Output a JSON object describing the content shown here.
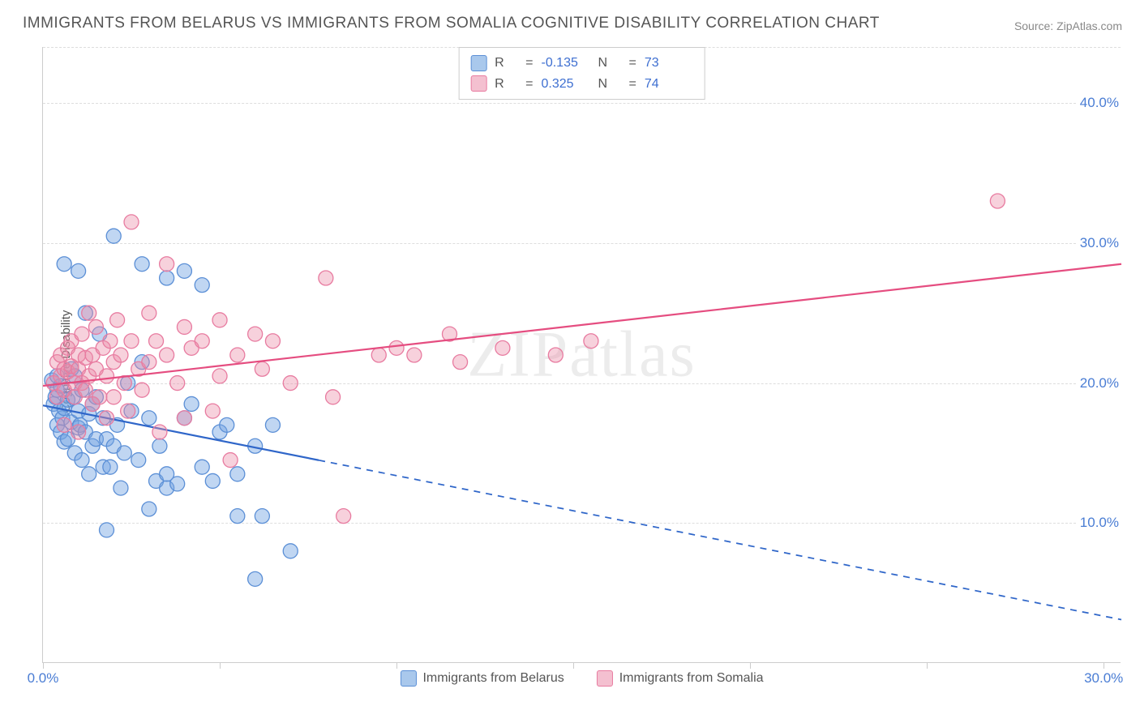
{
  "title": "IMMIGRANTS FROM BELARUS VS IMMIGRANTS FROM SOMALIA COGNITIVE DISABILITY CORRELATION CHART",
  "source": "Source: ZipAtlas.com",
  "watermark": "ZIPatlas",
  "y_axis_title": "Cognitive Disability",
  "chart": {
    "type": "scatter",
    "xlim": [
      0,
      30.5
    ],
    "ylim": [
      0,
      44
    ],
    "xticks": [
      0,
      5,
      10,
      15,
      20,
      25,
      30
    ],
    "xtick_labels": {
      "0": "0.0%",
      "30": "30.0%"
    },
    "yticks": [
      10,
      20,
      30,
      40
    ],
    "ytick_labels": {
      "10": "10.0%",
      "20": "20.0%",
      "30": "30.0%",
      "40": "40.0%"
    },
    "background_color": "#ffffff",
    "grid_color": "#dddddd",
    "axis_label_color": "#4a7dd4",
    "series": [
      {
        "name": "Immigrants from Belarus",
        "color_fill": "rgba(116,165,226,0.45)",
        "color_stroke": "#5b8fd6",
        "legend_swatch": "#a9c8ec",
        "legend_border": "#5b8fd6",
        "marker_radius": 9,
        "R": "-0.135",
        "N": "73",
        "trend": {
          "x1": 0,
          "y1": 18.4,
          "x2": 30.5,
          "y2": 3.1,
          "solid_until_x": 7.8,
          "color": "#2f66c9",
          "width": 2.2
        },
        "points": [
          [
            0.25,
            20.2
          ],
          [
            0.3,
            18.5
          ],
          [
            0.35,
            19.0
          ],
          [
            0.4,
            17.0
          ],
          [
            0.4,
            19.5
          ],
          [
            0.45,
            18.0
          ],
          [
            0.5,
            16.5
          ],
          [
            0.5,
            19.8
          ],
          [
            0.55,
            17.5
          ],
          [
            0.6,
            18.2
          ],
          [
            0.6,
            15.8
          ],
          [
            0.7,
            16.0
          ],
          [
            0.7,
            18.8
          ],
          [
            0.8,
            17.2
          ],
          [
            0.8,
            21.0
          ],
          [
            0.85,
            19.0
          ],
          [
            0.9,
            15.0
          ],
          [
            0.9,
            20.5
          ],
          [
            1.0,
            16.8
          ],
          [
            1.0,
            18.0
          ],
          [
            1.05,
            17.0
          ],
          [
            1.1,
            19.5
          ],
          [
            1.1,
            14.5
          ],
          [
            1.2,
            25.0
          ],
          [
            1.2,
            16.5
          ],
          [
            1.3,
            17.8
          ],
          [
            1.3,
            13.5
          ],
          [
            1.4,
            18.5
          ],
          [
            1.4,
            15.5
          ],
          [
            1.5,
            16.0
          ],
          [
            1.5,
            19.0
          ],
          [
            1.6,
            23.5
          ],
          [
            1.7,
            14.0
          ],
          [
            1.7,
            17.5
          ],
          [
            1.8,
            9.5
          ],
          [
            1.8,
            16.0
          ],
          [
            1.9,
            14.0
          ],
          [
            2.0,
            30.5
          ],
          [
            2.0,
            15.5
          ],
          [
            2.1,
            17.0
          ],
          [
            2.2,
            12.5
          ],
          [
            2.3,
            15.0
          ],
          [
            2.4,
            20.0
          ],
          [
            2.5,
            18.0
          ],
          [
            2.7,
            14.5
          ],
          [
            2.8,
            28.5
          ],
          [
            2.8,
            21.5
          ],
          [
            3.0,
            17.5
          ],
          [
            3.0,
            11.0
          ],
          [
            3.2,
            13.0
          ],
          [
            3.3,
            15.5
          ],
          [
            3.5,
            12.5
          ],
          [
            3.5,
            27.5
          ],
          [
            3.8,
            12.8
          ],
          [
            4.0,
            17.5
          ],
          [
            4.0,
            28.0
          ],
          [
            4.2,
            18.5
          ],
          [
            4.5,
            14.0
          ],
          [
            4.5,
            27.0
          ],
          [
            4.8,
            13.0
          ],
          [
            5.0,
            16.5
          ],
          [
            5.2,
            17.0
          ],
          [
            5.5,
            10.5
          ],
          [
            5.5,
            13.5
          ],
          [
            6.0,
            15.5
          ],
          [
            6.0,
            6.0
          ],
          [
            6.2,
            10.5
          ],
          [
            6.5,
            17.0
          ],
          [
            7.0,
            8.0
          ],
          [
            0.6,
            28.5
          ],
          [
            1.0,
            28.0
          ],
          [
            3.5,
            13.5
          ],
          [
            0.4,
            20.5
          ]
        ]
      },
      {
        "name": "Immigrants from Somalia",
        "color_fill": "rgba(236,140,168,0.40)",
        "color_stroke": "#e87ba0",
        "legend_swatch": "#f4c0d0",
        "legend_border": "#e87ba0",
        "marker_radius": 9,
        "R": "0.325",
        "N": "74",
        "trend": {
          "x1": 0,
          "y1": 19.8,
          "x2": 30.5,
          "y2": 28.5,
          "solid_until_x": 30.5,
          "color": "#e54d80",
          "width": 2.2
        },
        "points": [
          [
            0.3,
            20.0
          ],
          [
            0.4,
            21.5
          ],
          [
            0.4,
            19.0
          ],
          [
            0.5,
            20.5
          ],
          [
            0.5,
            22.0
          ],
          [
            0.6,
            21.0
          ],
          [
            0.6,
            19.5
          ],
          [
            0.7,
            20.8
          ],
          [
            0.7,
            22.5
          ],
          [
            0.8,
            21.2
          ],
          [
            0.8,
            23.0
          ],
          [
            0.9,
            20.0
          ],
          [
            0.9,
            19.0
          ],
          [
            1.0,
            22.0
          ],
          [
            1.0,
            21.0
          ],
          [
            1.1,
            20.0
          ],
          [
            1.1,
            23.5
          ],
          [
            1.2,
            19.5
          ],
          [
            1.2,
            21.8
          ],
          [
            1.3,
            25.0
          ],
          [
            1.3,
            20.5
          ],
          [
            1.4,
            22.0
          ],
          [
            1.4,
            18.5
          ],
          [
            1.5,
            21.0
          ],
          [
            1.5,
            24.0
          ],
          [
            1.6,
            19.0
          ],
          [
            1.7,
            22.5
          ],
          [
            1.8,
            20.5
          ],
          [
            1.8,
            17.5
          ],
          [
            1.9,
            23.0
          ],
          [
            2.0,
            21.5
          ],
          [
            2.0,
            19.0
          ],
          [
            2.1,
            24.5
          ],
          [
            2.2,
            22.0
          ],
          [
            2.3,
            20.0
          ],
          [
            2.4,
            18.0
          ],
          [
            2.5,
            31.5
          ],
          [
            2.5,
            23.0
          ],
          [
            2.7,
            21.0
          ],
          [
            2.8,
            19.5
          ],
          [
            3.0,
            25.0
          ],
          [
            3.0,
            21.5
          ],
          [
            3.2,
            23.0
          ],
          [
            3.3,
            16.5
          ],
          [
            3.5,
            28.5
          ],
          [
            3.5,
            22.0
          ],
          [
            3.8,
            20.0
          ],
          [
            4.0,
            24.0
          ],
          [
            4.0,
            17.5
          ],
          [
            4.2,
            22.5
          ],
          [
            4.5,
            23.0
          ],
          [
            4.8,
            18.0
          ],
          [
            5.0,
            24.5
          ],
          [
            5.0,
            20.5
          ],
          [
            5.3,
            14.5
          ],
          [
            5.5,
            22.0
          ],
          [
            6.0,
            23.5
          ],
          [
            6.2,
            21.0
          ],
          [
            6.5,
            23.0
          ],
          [
            7.0,
            20.0
          ],
          [
            8.0,
            27.5
          ],
          [
            8.2,
            19.0
          ],
          [
            8.5,
            10.5
          ],
          [
            9.5,
            22.0
          ],
          [
            10.0,
            22.5
          ],
          [
            10.5,
            22.0
          ],
          [
            11.5,
            23.5
          ],
          [
            11.8,
            21.5
          ],
          [
            13.0,
            22.5
          ],
          [
            14.5,
            22.0
          ],
          [
            15.5,
            23.0
          ],
          [
            27.0,
            33.0
          ],
          [
            0.6,
            17.0
          ],
          [
            1.0,
            16.5
          ]
        ]
      }
    ]
  },
  "corr_legend": {
    "R_label": "R",
    "N_label": "N",
    "eq": "="
  },
  "bottom_legend_labels": [
    "Immigrants from Belarus",
    "Immigrants from Somalia"
  ]
}
